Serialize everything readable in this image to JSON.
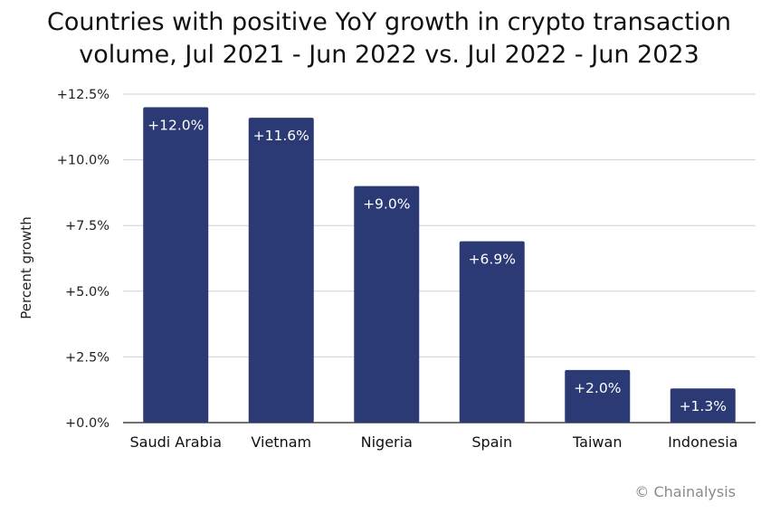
{
  "chart_data": {
    "type": "bar",
    "title_line1": "Countries with positive YoY growth in crypto transaction",
    "title_line2": "volume, Jul 2021 - Jun 2022 vs. Jul 2022 - Jun 2023",
    "ylabel": "Percent growth",
    "xlabel": "",
    "categories": [
      "Saudi Arabia",
      "Vietnam",
      "Nigeria",
      "Spain",
      "Taiwan",
      "Indonesia"
    ],
    "values": [
      12.0,
      11.6,
      9.0,
      6.9,
      2.0,
      1.3
    ],
    "data_labels": [
      "+12.0%",
      "+11.6%",
      "+9.0%",
      "+6.9%",
      "+2.0%",
      "+1.3%"
    ],
    "ylim": [
      0,
      12.5
    ],
    "yticks": [
      0,
      2.5,
      5.0,
      7.5,
      10.0,
      12.5
    ],
    "ytick_labels": [
      "+0.0%",
      "+2.5%",
      "+5.0%",
      "+7.5%",
      "+10.0%",
      "+12.5%"
    ],
    "grid": true,
    "bar_color": "#2b3a74",
    "label_color": "#ffffff",
    "gridline_color": "#d0d0d0",
    "source": "© Chainalysis"
  }
}
